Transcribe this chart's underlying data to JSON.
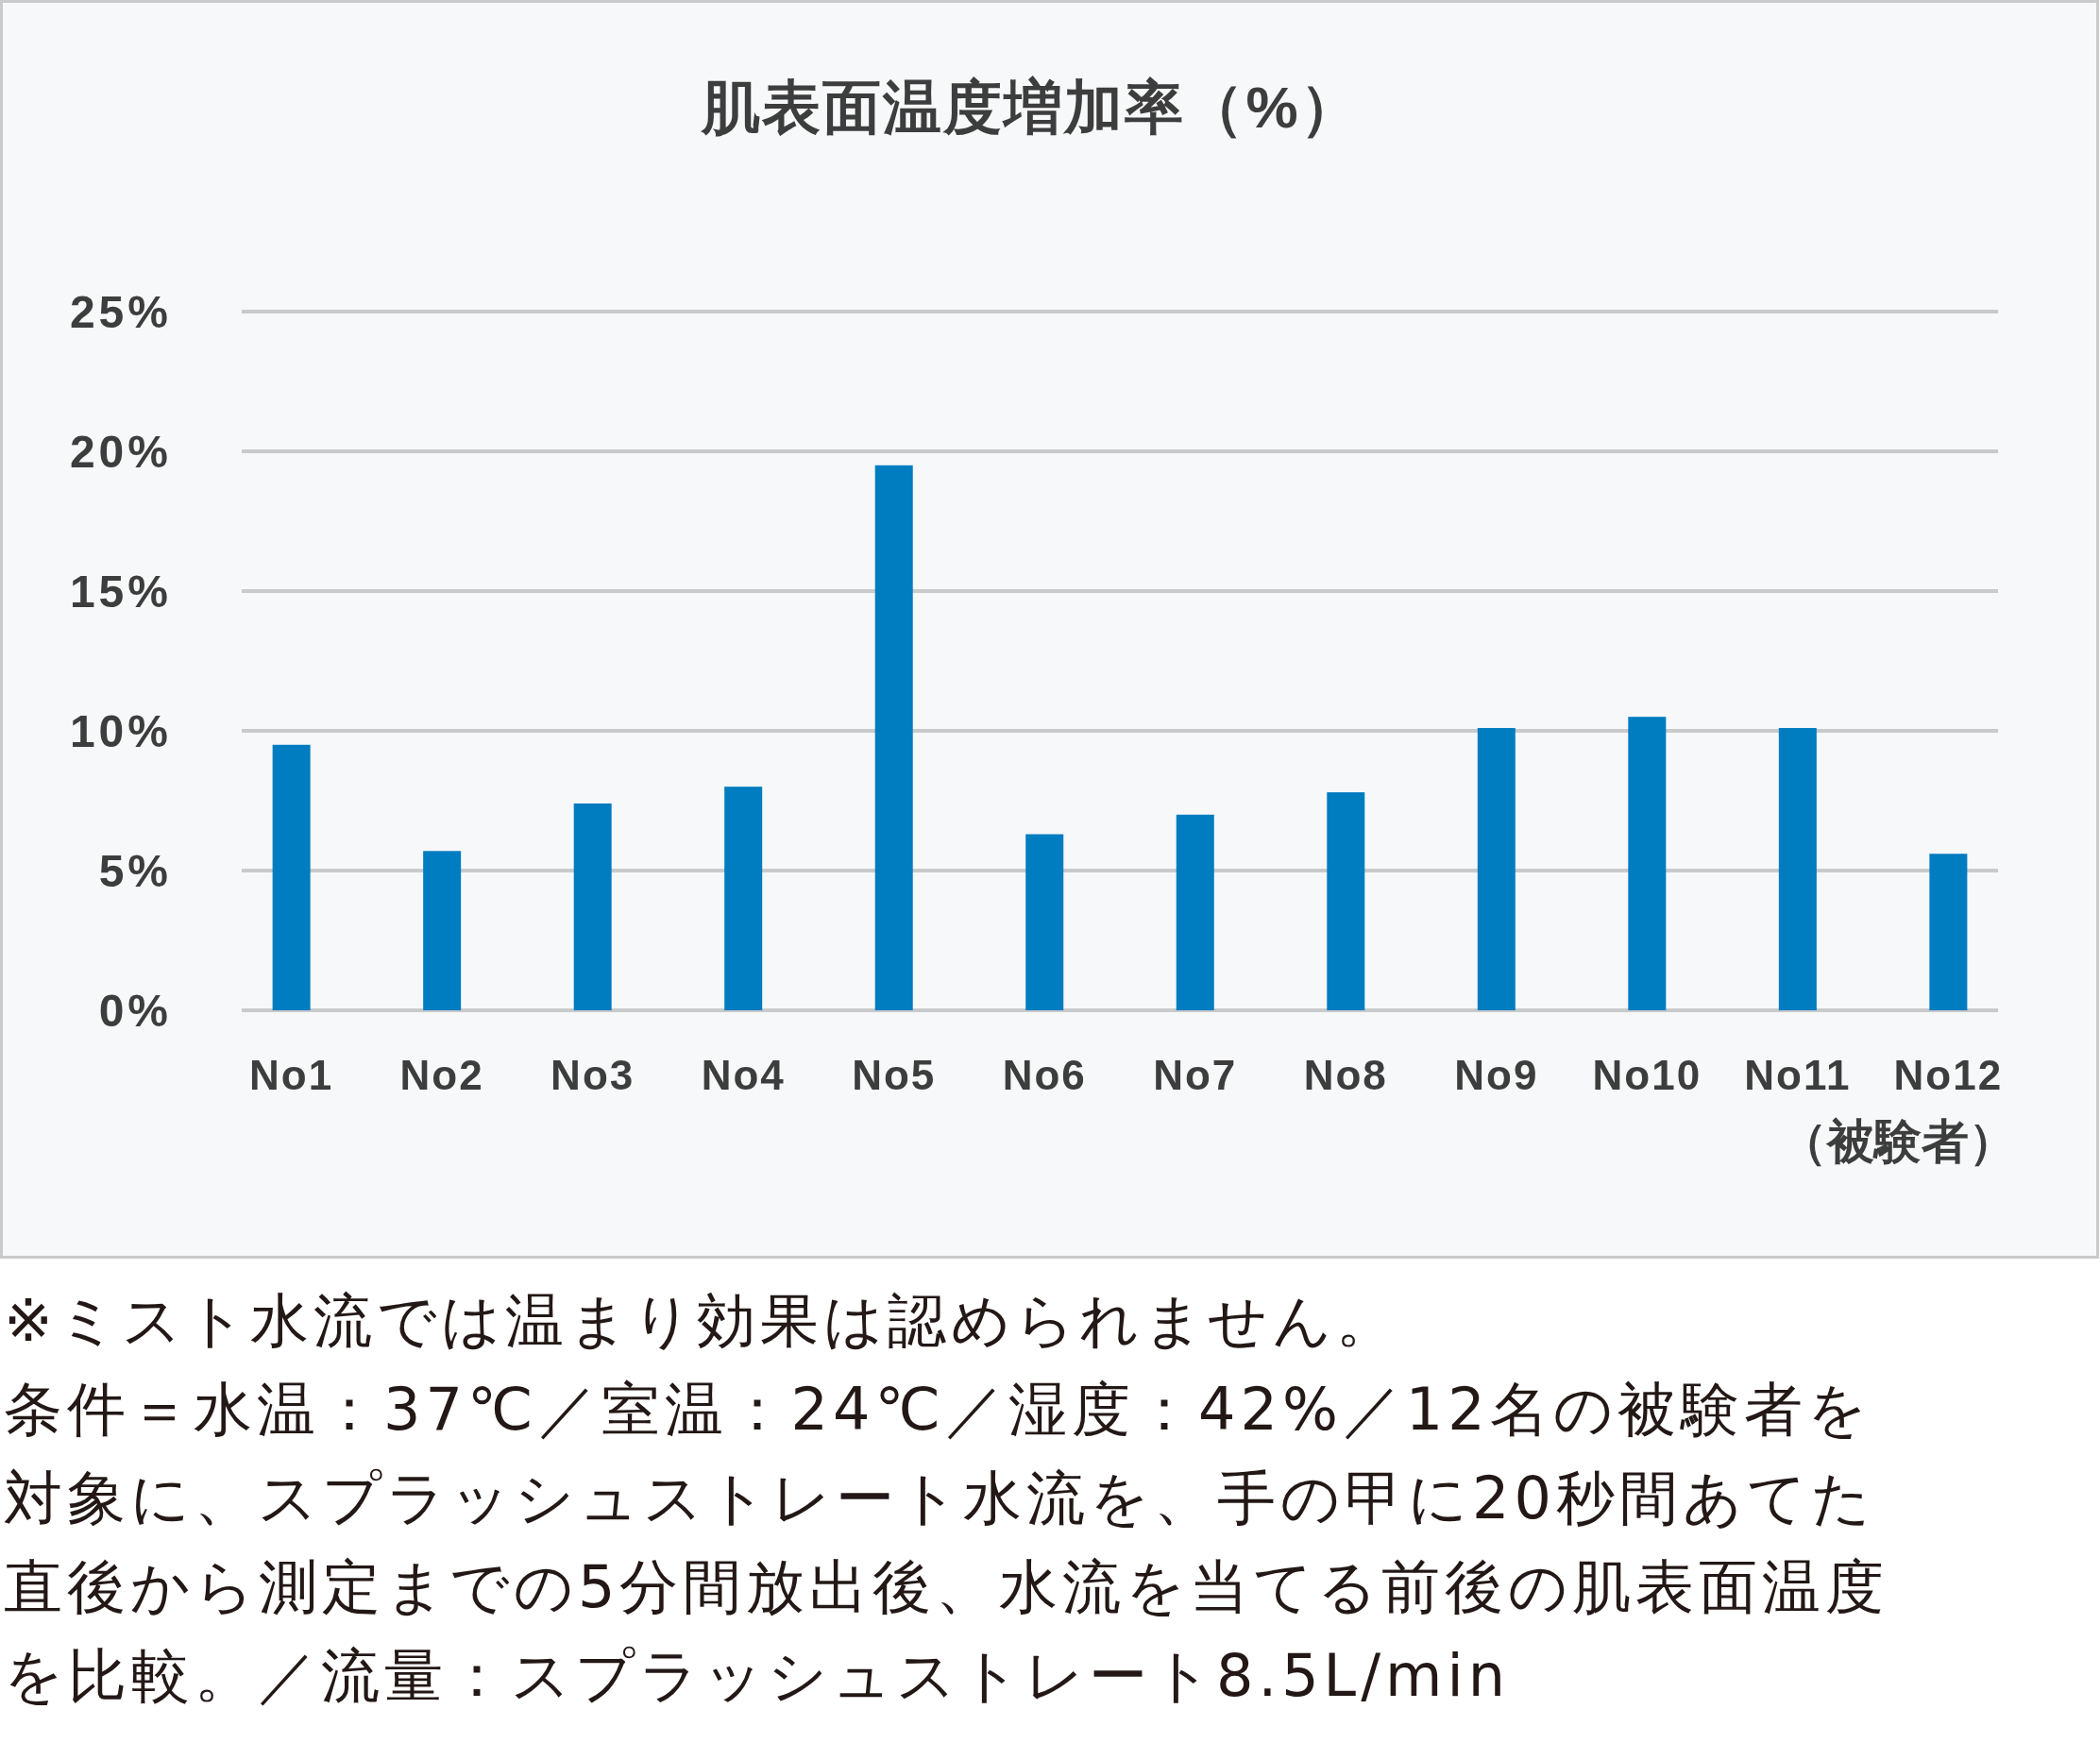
{
  "chart_data": {
    "type": "bar",
    "title": "肌表面温度増加率（%）",
    "xlabel": "（被験者）",
    "categories": [
      "No1",
      "No2",
      "No3",
      "No4",
      "No5",
      "No6",
      "No7",
      "No8",
      "No9",
      "No10",
      "No11",
      "No12"
    ],
    "values": [
      9.5,
      5.7,
      7.4,
      8.0,
      19.5,
      6.3,
      7.0,
      7.8,
      10.1,
      10.5,
      10.1,
      5.6
    ],
    "color": "#007cc0",
    "ylim": [
      0,
      25
    ],
    "yticks": [
      {
        "value": 0,
        "label": "0%"
      },
      {
        "value": 5,
        "label": "5%"
      },
      {
        "value": 10,
        "label": "10%"
      },
      {
        "value": 15,
        "label": "15%"
      },
      {
        "value": 20,
        "label": "20%"
      },
      {
        "value": 25,
        "label": "25%"
      }
    ],
    "grid": "y",
    "annotations": [
      "※ミスト水流では温まり効果は認められません。",
      "条件＝水温：37℃／室温：24℃／湿度：42%／12名の被験者を対象に、スプラッシュストレート水流を、手の甲に20秒間あてた直後から測定までの5分間放出後、水流を当てる前後の肌表面温度を比較。／流量：スプラッシュストレート8.5L/min"
    ]
  }
}
